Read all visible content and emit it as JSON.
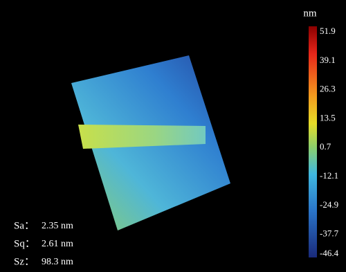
{
  "colorbar": {
    "unit": "nm",
    "clim": [
      -46.4,
      51.9
    ],
    "ticks": [
      51.9,
      39.1,
      26.3,
      13.5,
      0.7,
      -12.1,
      -24.9,
      -37.7,
      -46.4
    ]
  },
  "stats": [
    {
      "label": "Sa：",
      "value": "2.35 nm"
    },
    {
      "label": "Sq：",
      "value": "2.61 nm"
    },
    {
      "label": "Sz：",
      "value": "98.3 nm"
    }
  ]
}
